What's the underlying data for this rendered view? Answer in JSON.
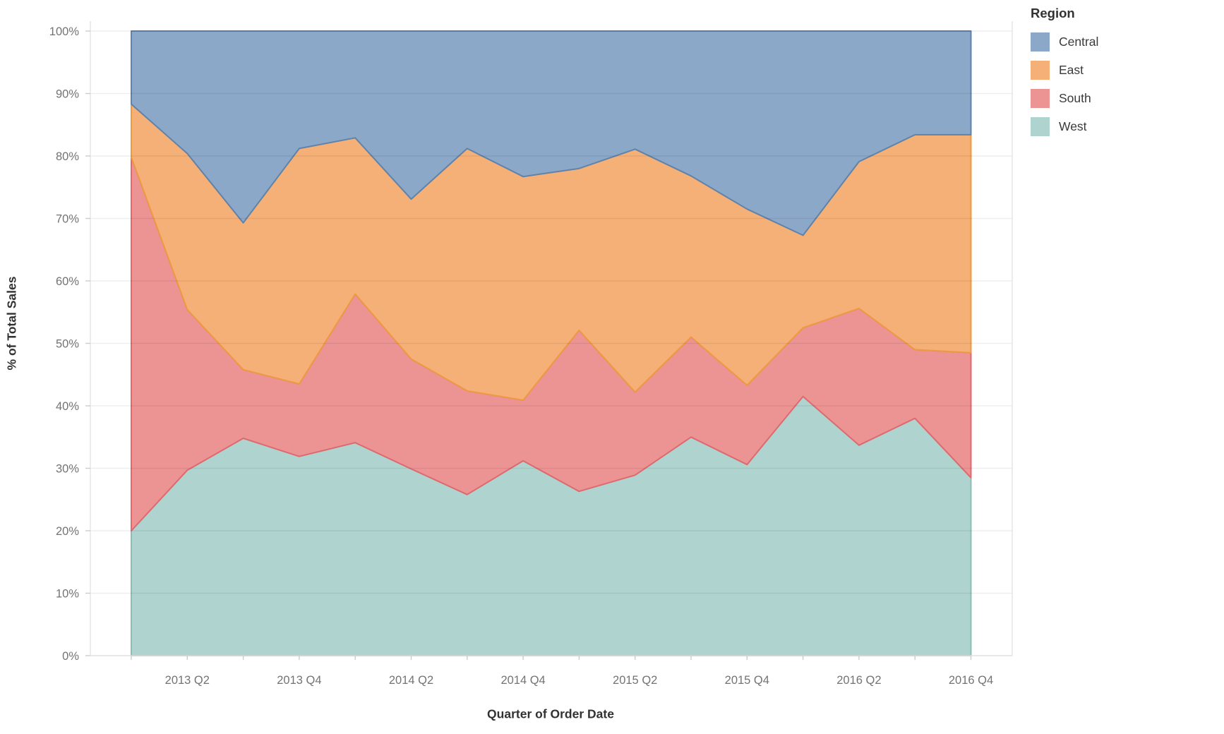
{
  "chart_data": {
    "type": "area",
    "stacked_percent": true,
    "title": "",
    "xlabel": "Quarter of Order Date",
    "ylabel": "% of Total Sales",
    "ylim": [
      0,
      100
    ],
    "y_tick_step": 10,
    "y_tick_suffix": "%",
    "grid": "horizontal",
    "legend_position": "top-right",
    "categories": [
      "2013 Q1",
      "2013 Q2",
      "2013 Q3",
      "2013 Q4",
      "2014 Q1",
      "2014 Q2",
      "2014 Q3",
      "2014 Q4",
      "2015 Q1",
      "2015 Q2",
      "2015 Q3",
      "2015 Q4",
      "2016 Q1",
      "2016 Q2",
      "2016 Q3",
      "2016 Q4"
    ],
    "x_tick_labels": [
      "2013 Q2",
      "2013 Q4",
      "2014 Q2",
      "2014 Q4",
      "2015 Q2",
      "2015 Q4",
      "2016 Q2",
      "2016 Q4"
    ],
    "x_tick_label_indices": [
      1,
      3,
      5,
      7,
      9,
      11,
      13,
      15
    ],
    "stack_order_bottom_to_top": [
      "West",
      "South",
      "East",
      "Central"
    ],
    "series": [
      {
        "name": "West",
        "fill": "#AFD3CE",
        "stroke": "#8CBFB4",
        "values": [
          20.0,
          29.7,
          34.8,
          31.9,
          34.1,
          29.9,
          25.8,
          31.2,
          26.3,
          28.9,
          35.0,
          30.6,
          41.5,
          33.7,
          38.0,
          28.5
        ]
      },
      {
        "name": "South",
        "fill": "#EC9394",
        "stroke": "#E0696E",
        "values": [
          59.8,
          25.7,
          11.0,
          11.6,
          23.8,
          17.6,
          16.6,
          9.7,
          25.8,
          13.3,
          16.0,
          12.7,
          11.0,
          21.9,
          11.0,
          20.0
        ]
      },
      {
        "name": "East",
        "fill": "#F5B077",
        "stroke": "#ED9A41",
        "values": [
          8.5,
          25.0,
          23.5,
          37.7,
          25.0,
          25.6,
          38.8,
          35.8,
          25.9,
          38.9,
          25.8,
          28.2,
          14.8,
          23.5,
          34.4,
          34.9
        ]
      },
      {
        "name": "Central",
        "fill": "#8CA8C9",
        "stroke": "#5E83AC",
        "values": [
          11.7,
          19.6,
          30.7,
          18.8,
          17.1,
          26.9,
          18.8,
          23.3,
          22.0,
          18.9,
          23.2,
          28.5,
          32.7,
          20.9,
          16.6,
          16.6
        ]
      }
    ]
  },
  "legend": {
    "title": "Region",
    "items": [
      {
        "label": "Central",
        "color": "#8CA8C9"
      },
      {
        "label": "East",
        "color": "#F5B077"
      },
      {
        "label": "South",
        "color": "#EC9394"
      },
      {
        "label": "West",
        "color": "#AFD3CE"
      }
    ]
  },
  "style": {
    "tick_label_color": "#737373",
    "grid_color": "rgba(0,0,0,0.065)",
    "border_color": "#E3E3E3",
    "tick_mark_color": "#CCCCCC"
  }
}
